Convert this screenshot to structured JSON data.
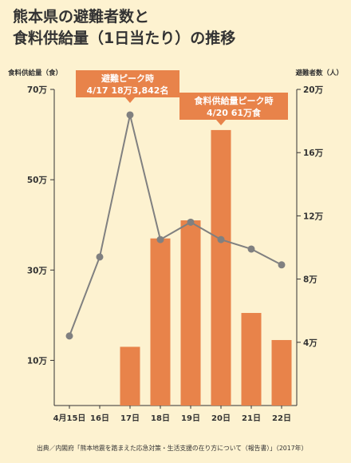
{
  "title_lines": [
    "熊本県の避難者数と",
    "食料供給量（1日当たり）の推移"
  ],
  "source": "出典／内閣府「熊本地震を踏まえた応急対策・生活支援の在り方について（報告書）」（2017年）",
  "colors": {
    "bar": "#E8834A",
    "line": "#808080",
    "callout": "#E8834A",
    "axis": "#333333",
    "background": "#FDF2D0"
  },
  "chart_data": {
    "type": "bar+line",
    "categories": [
      "4月15日",
      "16日",
      "17日",
      "18日",
      "19日",
      "20日",
      "21日",
      "22日"
    ],
    "left_axis": {
      "label": "食料供給量（食）",
      "ylim": [
        0,
        700000
      ],
      "ticks": [
        100000,
        300000,
        500000,
        700000
      ],
      "tick_labels": [
        "10万",
        "30万",
        "50万",
        "70万"
      ]
    },
    "right_axis": {
      "label": "避難者数（人）",
      "ylim": [
        0,
        200000
      ],
      "ticks": [
        40000,
        80000,
        120000,
        160000,
        200000
      ],
      "tick_labels": [
        "4万",
        "8万",
        "12万",
        "16万",
        "20万"
      ]
    },
    "series": [
      {
        "type": "bar",
        "axis": "left",
        "values": [
          null,
          null,
          130000,
          370000,
          410000,
          610000,
          205000,
          145000
        ]
      },
      {
        "type": "line",
        "axis": "right",
        "values": [
          44000,
          94000,
          183842,
          105000,
          116000,
          105000,
          99000,
          89000
        ]
      }
    ],
    "annotations": [
      {
        "lines": [
          "避難ピーク時",
          "4/17 18万3,842名"
        ],
        "category": "17日"
      },
      {
        "lines": [
          "食料供給量ピーク時",
          "4/20 61万食"
        ],
        "category": "20日"
      }
    ],
    "grid": false
  }
}
